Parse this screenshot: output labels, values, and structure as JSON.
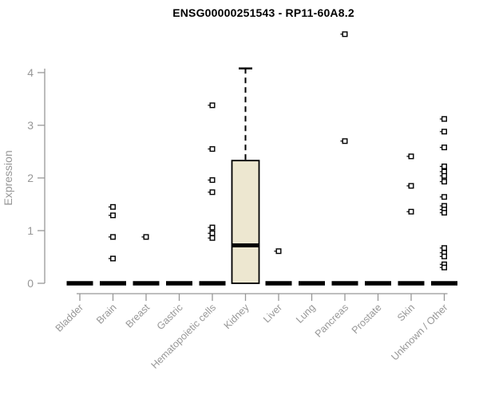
{
  "chart_data": {
    "type": "boxplot",
    "title": "ENSG00000251543 - RP11-60A8.2",
    "ylabel": "Expression",
    "xlabel": "",
    "ylim": [
      0,
      4
    ],
    "yticks": [
      0,
      1,
      2,
      3,
      4
    ],
    "grid": false,
    "legend": false,
    "categories": [
      "Bladder",
      "Brain",
      "Breast",
      "Gastric",
      "Hematopoietic cells",
      "Kidney",
      "Liver",
      "Lung",
      "Pancreas",
      "Prostate",
      "Skin",
      "Unknown / Other"
    ],
    "boxes": [
      {
        "category": "Bladder",
        "q1": 0,
        "median": 0,
        "q3": 0,
        "whisker_low": 0,
        "whisker_high": 0,
        "outliers": []
      },
      {
        "category": "Brain",
        "q1": 0,
        "median": 0,
        "q3": 0,
        "whisker_low": 0,
        "whisker_high": 0,
        "outliers": [
          1.45,
          1.29,
          0.88,
          0.47
        ]
      },
      {
        "category": "Breast",
        "q1": 0,
        "median": 0,
        "q3": 0,
        "whisker_low": 0,
        "whisker_high": 0,
        "outliers": [
          0.88
        ]
      },
      {
        "category": "Gastric",
        "q1": 0,
        "median": 0,
        "q3": 0,
        "whisker_low": 0,
        "whisker_high": 0,
        "outliers": []
      },
      {
        "category": "Hematopoietic cells",
        "q1": 0,
        "median": 0,
        "q3": 0,
        "whisker_low": 0,
        "whisker_high": 0,
        "outliers": [
          3.38,
          2.55,
          1.96,
          1.73,
          1.06,
          0.95,
          0.86
        ]
      },
      {
        "category": "Kidney",
        "q1": 0,
        "median": 0.72,
        "q3": 2.33,
        "whisker_low": 0,
        "whisker_high": 4.08,
        "outliers": []
      },
      {
        "category": "Liver",
        "q1": 0,
        "median": 0,
        "q3": 0,
        "whisker_low": 0,
        "whisker_high": 0,
        "outliers": [
          0.61
        ]
      },
      {
        "category": "Lung",
        "q1": 0,
        "median": 0,
        "q3": 0,
        "whisker_low": 0,
        "whisker_high": 0,
        "outliers": []
      },
      {
        "category": "Pancreas",
        "q1": 0,
        "median": 0,
        "q3": 0,
        "whisker_low": 0,
        "whisker_high": 0,
        "outliers": [
          4.73,
          2.7
        ]
      },
      {
        "category": "Prostate",
        "q1": 0,
        "median": 0,
        "q3": 0,
        "whisker_low": 0,
        "whisker_high": 0,
        "outliers": []
      },
      {
        "category": "Skin",
        "q1": 0,
        "median": 0,
        "q3": 0,
        "whisker_low": 0,
        "whisker_high": 0,
        "outliers": [
          2.41,
          1.85,
          1.36
        ]
      },
      {
        "category": "Unknown / Other",
        "q1": 0,
        "median": 0,
        "q3": 0,
        "whisker_low": 0,
        "whisker_high": 0,
        "outliers": [
          3.12,
          2.88,
          2.58,
          2.22,
          2.12,
          2.04,
          1.93,
          1.64,
          1.47,
          1.4,
          1.34,
          0.67,
          0.58,
          0.51,
          0.36,
          0.3
        ]
      }
    ],
    "colors": {
      "box_fill": "#EDE7D0",
      "box_border": "#000000",
      "median": "#000000",
      "whisker": "#000000",
      "outlier_stroke": "#000000",
      "outlier_fill": "#FFFFFF",
      "axis": "#979797",
      "tick_label": "#979797",
      "title": "#000000"
    }
  }
}
